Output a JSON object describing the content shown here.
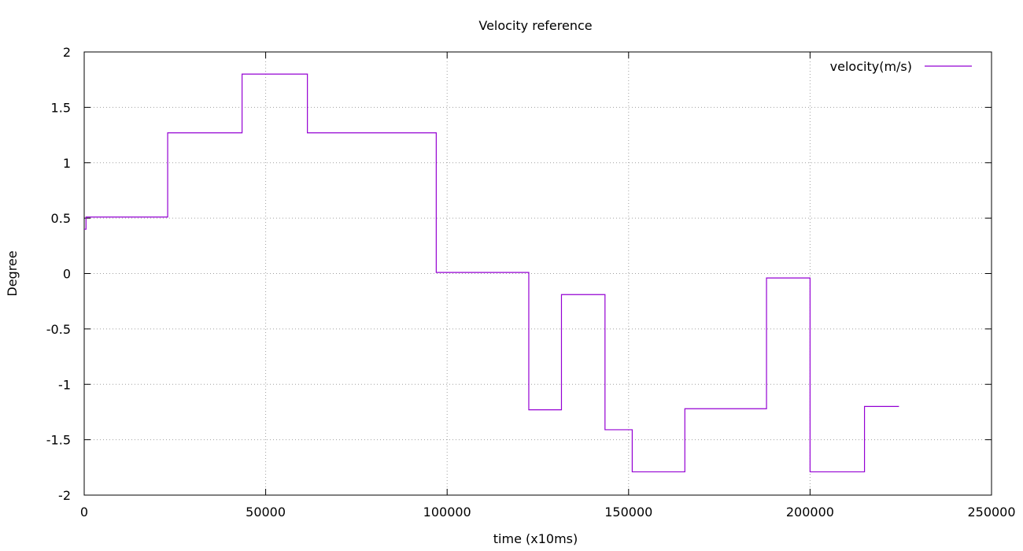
{
  "chart_data": {
    "type": "line",
    "title": "Velocity reference",
    "xlabel": "time (x10ms)",
    "ylabel": "Degree",
    "xlim": [
      0,
      250000
    ],
    "ylim": [
      -2,
      2
    ],
    "x_ticks": [
      0,
      50000,
      100000,
      150000,
      200000,
      250000
    ],
    "y_ticks": [
      -2,
      -1.5,
      -1,
      -0.5,
      0,
      0.5,
      1,
      1.5,
      2
    ],
    "grid": true,
    "legend_position": "top-right",
    "line_style": "steps",
    "colors": {
      "series": "#9400d3"
    },
    "series": [
      {
        "name": "velocity(m/s)",
        "x": [
          0,
          500,
          23000,
          43500,
          61500,
          97000,
          122500,
          131500,
          143500,
          151000,
          165500,
          188000,
          200000,
          215000,
          224500
        ],
        "y": [
          0.4,
          0.51,
          1.27,
          1.8,
          1.27,
          0.01,
          -1.23,
          -0.19,
          -1.41,
          -1.79,
          -1.22,
          -0.04,
          -1.79,
          -1.2,
          -1.2
        ]
      }
    ]
  }
}
